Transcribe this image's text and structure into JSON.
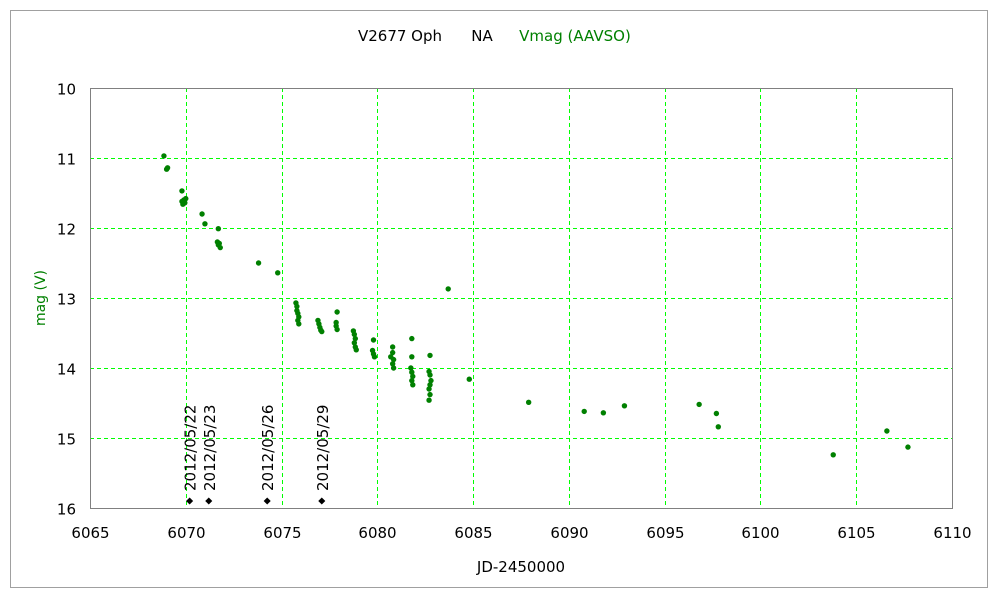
{
  "chart_data": {
    "type": "scatter",
    "title": {
      "object": "V2677 Oph",
      "field": "NA",
      "series": "Vmag (AAVSO)"
    },
    "xlabel": "JD-2450000",
    "ylabel": "mag (V)",
    "xlim": [
      6065,
      6110
    ],
    "ylim": [
      16,
      10
    ],
    "y_inverted": true,
    "grid": true,
    "xticks": [
      6065,
      6070,
      6075,
      6080,
      6085,
      6090,
      6095,
      6100,
      6105,
      6110
    ],
    "yticks": [
      10,
      11,
      12,
      13,
      14,
      15,
      16
    ],
    "colors": {
      "series": "#008000",
      "grid": "#00ff00",
      "marker": "#000000",
      "frame": "#808080"
    },
    "series": [
      {
        "name": "Vmag (AAVSO)",
        "points": [
          [
            6068.86,
            10.97
          ],
          [
            6069.0,
            11.16
          ],
          [
            6069.05,
            11.14
          ],
          [
            6069.8,
            11.47
          ],
          [
            6069.8,
            11.62
          ],
          [
            6069.85,
            11.66
          ],
          [
            6069.9,
            11.6
          ],
          [
            6070.0,
            11.58
          ],
          [
            6069.95,
            11.64
          ],
          [
            6070.85,
            11.8
          ],
          [
            6071.0,
            11.94
          ],
          [
            6071.7,
            12.01
          ],
          [
            6071.65,
            12.2
          ],
          [
            6071.75,
            12.22
          ],
          [
            6071.8,
            12.28
          ],
          [
            6071.7,
            12.24
          ],
          [
            6073.8,
            12.5
          ],
          [
            6074.8,
            12.64
          ],
          [
            6075.75,
            13.07
          ],
          [
            6075.8,
            13.12
          ],
          [
            6075.8,
            13.18
          ],
          [
            6075.85,
            13.22
          ],
          [
            6075.9,
            13.27
          ],
          [
            6075.85,
            13.32
          ],
          [
            6075.9,
            13.37
          ],
          [
            6076.9,
            13.32
          ],
          [
            6076.95,
            13.37
          ],
          [
            6077.0,
            13.42
          ],
          [
            6077.05,
            13.46
          ],
          [
            6077.1,
            13.48
          ],
          [
            6077.9,
            13.2
          ],
          [
            6077.85,
            13.35
          ],
          [
            6077.85,
            13.4
          ],
          [
            6077.9,
            13.45
          ],
          [
            6078.75,
            13.47
          ],
          [
            6078.8,
            13.52
          ],
          [
            6078.85,
            13.58
          ],
          [
            6078.8,
            13.64
          ],
          [
            6078.85,
            13.7
          ],
          [
            6078.9,
            13.74
          ],
          [
            6079.8,
            13.6
          ],
          [
            6079.75,
            13.75
          ],
          [
            6079.8,
            13.8
          ],
          [
            6079.85,
            13.84
          ],
          [
            6080.8,
            13.7
          ],
          [
            6080.8,
            13.78
          ],
          [
            6080.7,
            13.84
          ],
          [
            6080.85,
            13.88
          ],
          [
            6080.8,
            13.94
          ],
          [
            6080.85,
            14.0
          ],
          [
            6081.8,
            13.58
          ],
          [
            6081.8,
            13.84
          ],
          [
            6081.75,
            14.0
          ],
          [
            6081.8,
            14.06
          ],
          [
            6081.85,
            14.12
          ],
          [
            6081.8,
            14.18
          ],
          [
            6081.85,
            14.24
          ],
          [
            6082.75,
            13.82
          ],
          [
            6082.7,
            14.05
          ],
          [
            6082.75,
            14.1
          ],
          [
            6082.8,
            14.18
          ],
          [
            6082.75,
            14.24
          ],
          [
            6082.7,
            14.3
          ],
          [
            6082.75,
            14.38
          ],
          [
            6082.7,
            14.46
          ],
          [
            6083.7,
            12.87
          ],
          [
            6084.8,
            14.16
          ],
          [
            6087.9,
            14.49
          ],
          [
            6090.8,
            14.62
          ],
          [
            6091.8,
            14.64
          ],
          [
            6092.9,
            14.54
          ],
          [
            6096.8,
            14.52
          ],
          [
            6097.7,
            14.65
          ],
          [
            6097.8,
            14.84
          ],
          [
            6103.8,
            15.24
          ],
          [
            6106.6,
            14.9
          ],
          [
            6107.7,
            15.13
          ]
        ]
      }
    ],
    "annotations": [
      {
        "x": 6070.2,
        "y": 15.9,
        "label": "2012/05/22"
      },
      {
        "x": 6071.2,
        "y": 15.9,
        "label": "2012/05/23"
      },
      {
        "x": 6074.25,
        "y": 15.9,
        "label": "2012/05/26"
      },
      {
        "x": 6077.1,
        "y": 15.9,
        "label": "2012/05/29"
      }
    ]
  }
}
